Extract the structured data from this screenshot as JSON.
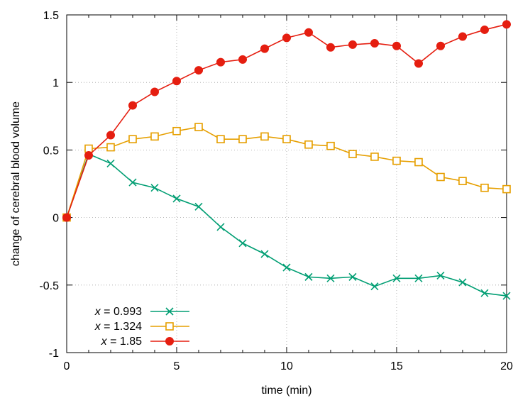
{
  "chart_data": {
    "type": "line",
    "title": "",
    "xlabel": "time (min)",
    "ylabel": "change of cerebral blood volume",
    "xlim": [
      0,
      20
    ],
    "ylim": [
      -1,
      1.5
    ],
    "xticks": [
      0,
      5,
      10,
      15,
      20
    ],
    "xtick_labels": [
      "0",
      "5",
      "10",
      "15",
      "20"
    ],
    "yticks": [
      -1,
      -0.5,
      0,
      0.5,
      1,
      1.5
    ],
    "ytick_labels": [
      "-1",
      "-0.5",
      "0",
      "0.5",
      "1",
      "1.5"
    ],
    "grid": true,
    "legend_position": "bottom-left",
    "x": [
      0,
      1,
      2,
      3,
      4,
      5,
      6,
      7,
      8,
      9,
      10,
      11,
      12,
      13,
      14,
      15,
      16,
      17,
      18,
      19,
      20
    ],
    "series": [
      {
        "name": "x = 0.993",
        "name_var": "x",
        "name_value": "= 0.993",
        "color": "#009e73",
        "marker": "cross",
        "values": [
          0,
          0.47,
          0.4,
          0.26,
          0.22,
          0.14,
          0.08,
          -0.07,
          -0.19,
          -0.27,
          -0.37,
          -0.44,
          -0.45,
          -0.44,
          -0.51,
          -0.45,
          -0.45,
          -0.43,
          -0.48,
          -0.56,
          -0.58
        ]
      },
      {
        "name": "x = 1.324",
        "name_var": "x",
        "name_value": "= 1.324",
        "color": "#e69f00",
        "marker": "open-square",
        "values": [
          0,
          0.51,
          0.52,
          0.58,
          0.6,
          0.64,
          0.67,
          0.58,
          0.58,
          0.6,
          0.58,
          0.54,
          0.53,
          0.47,
          0.45,
          0.42,
          0.41,
          0.3,
          0.27,
          0.22,
          0.21
        ]
      },
      {
        "name": "x = 1.85",
        "name_var": "x",
        "name_value": "= 1.85",
        "color": "#e51e10",
        "marker": "filled-circle",
        "values": [
          0,
          0.46,
          0.61,
          0.83,
          0.93,
          1.01,
          1.09,
          1.15,
          1.17,
          1.25,
          1.33,
          1.37,
          1.26,
          1.28,
          1.29,
          1.27,
          1.14,
          1.27,
          1.34,
          1.39,
          1.43
        ]
      }
    ]
  }
}
